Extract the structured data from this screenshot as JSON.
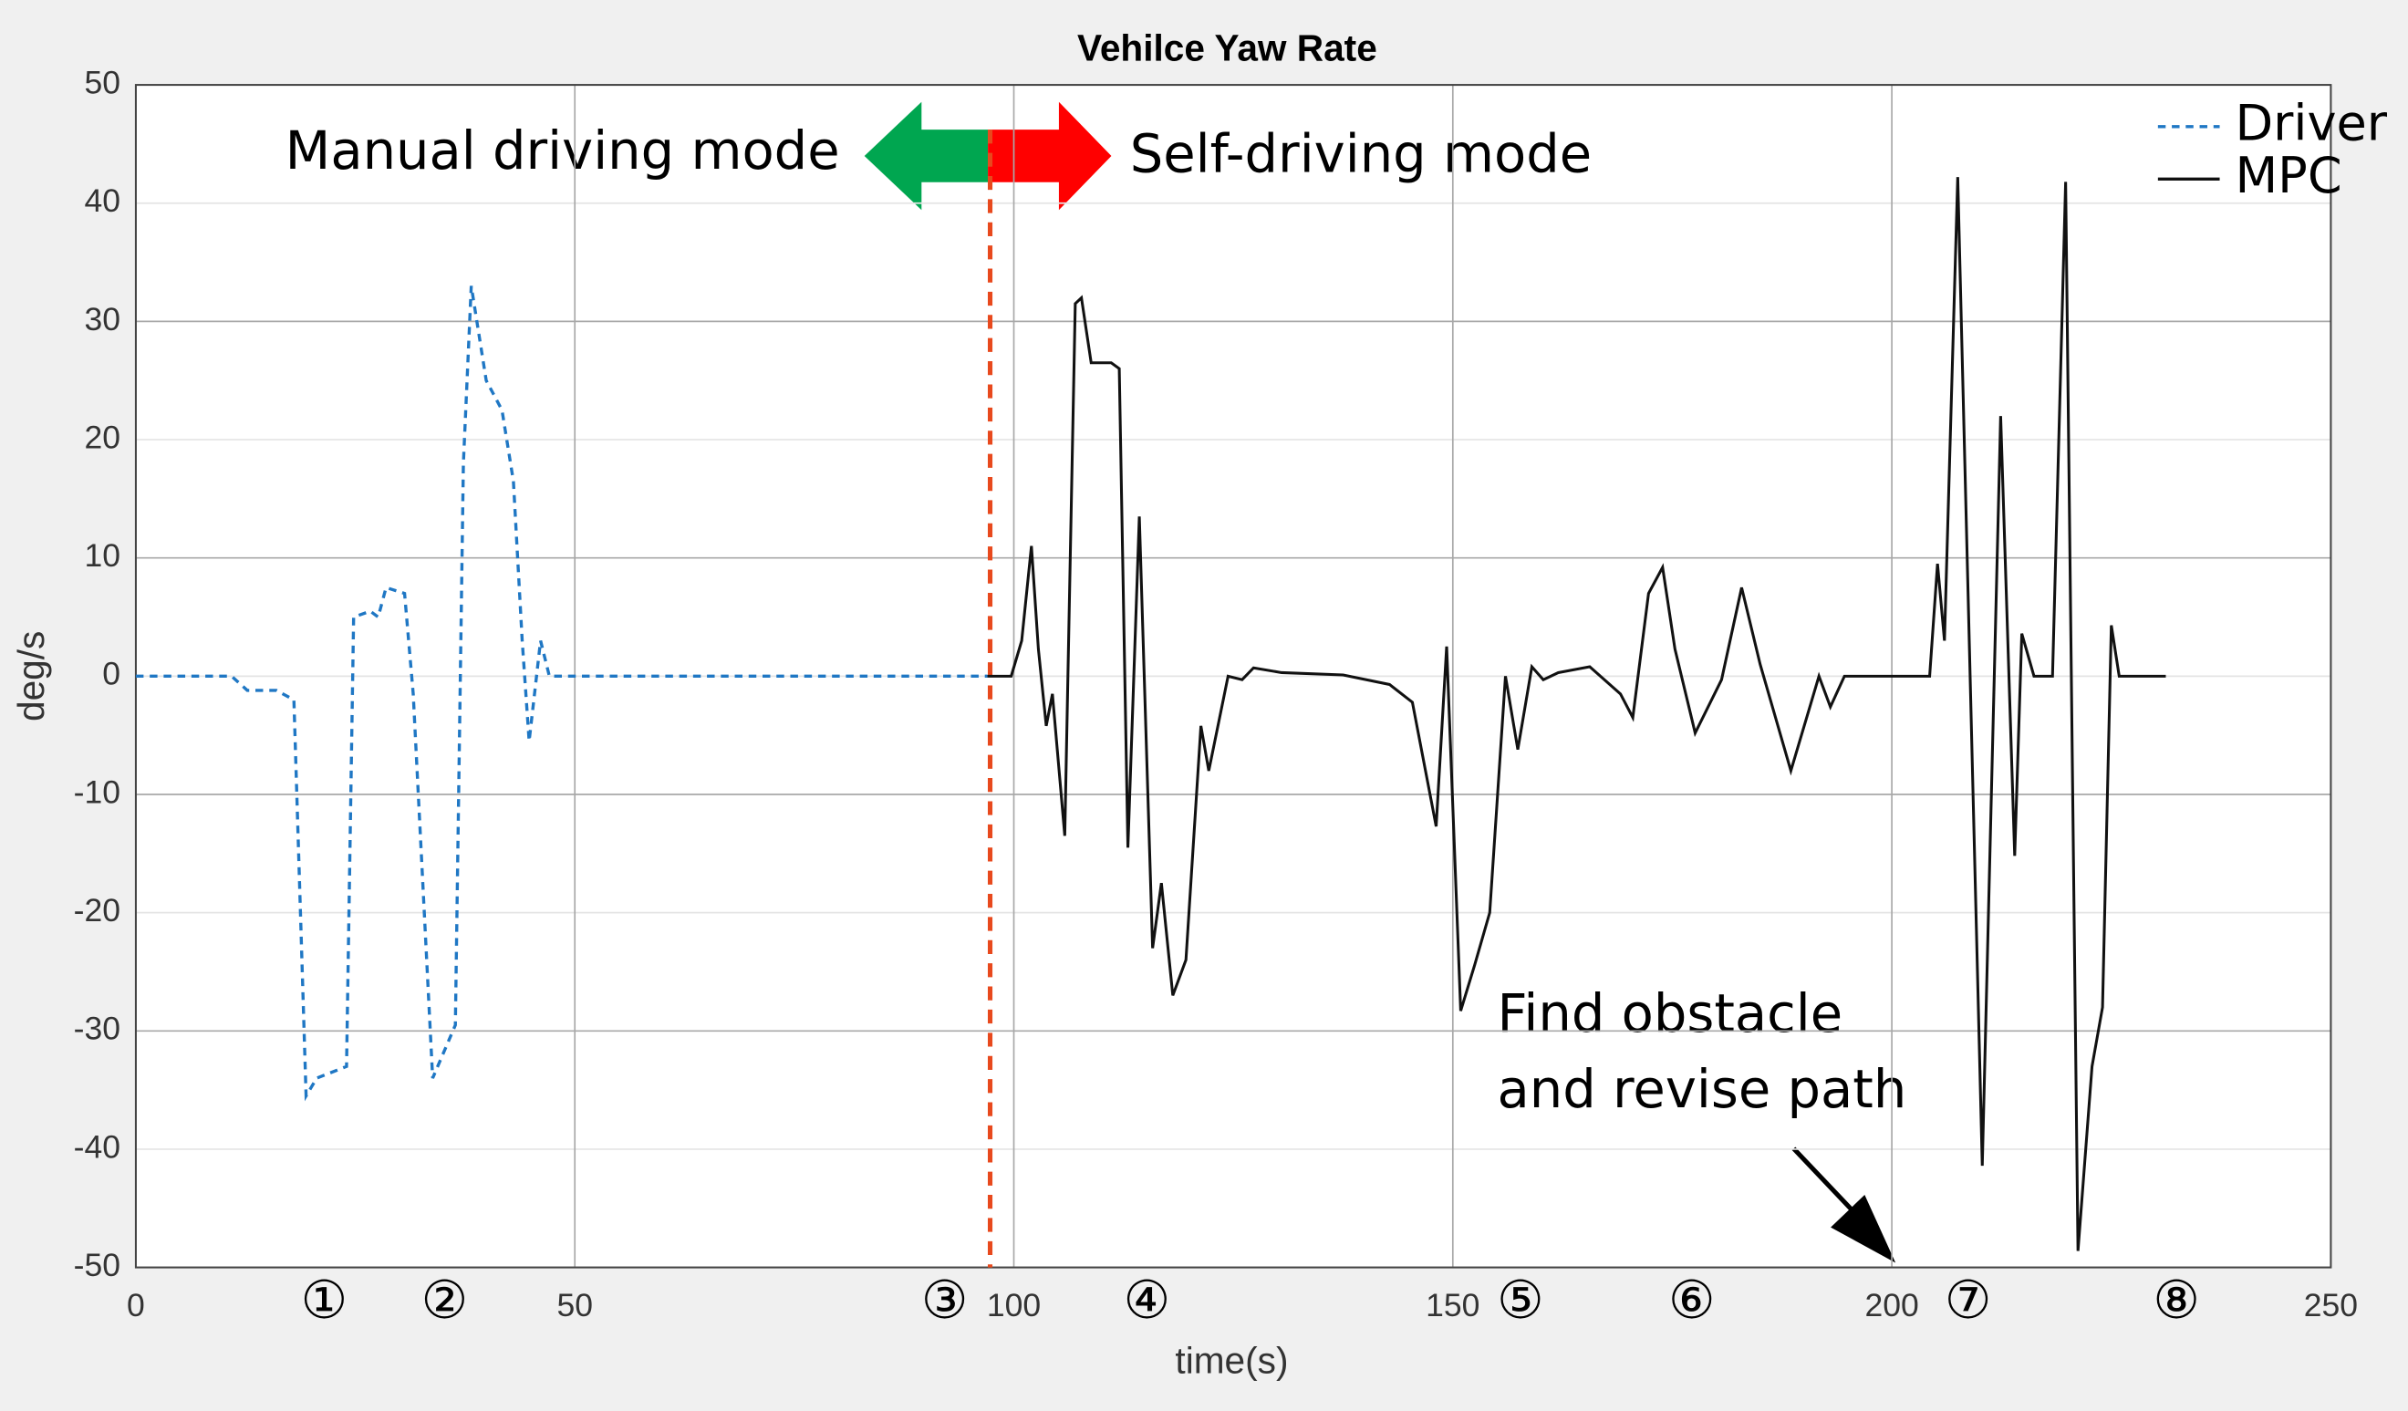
{
  "chart_data": {
    "type": "line",
    "title": "Vehilce Yaw Rate",
    "x_label": "time(s)",
    "y_label": "deg/s",
    "xlim": [
      0,
      250
    ],
    "xticks": [
      0,
      50,
      100,
      150,
      200,
      250
    ],
    "ylim": [
      -50,
      50
    ],
    "yticks": [
      -50,
      -40,
      -30,
      -20,
      -10,
      0,
      10,
      20,
      30,
      40,
      50
    ],
    "grid": true,
    "legend": "top-right",
    "series": [
      {
        "name": "Driver",
        "color": "#1f77c4",
        "dash": true,
        "x": [
          0,
          10.9,
          12.7,
          16,
          18,
          19.4,
          20.6,
          24,
          24.8,
          26.7,
          27.6,
          28.5,
          30.6,
          31.6,
          33.8,
          36.4,
          37.3,
          38.2,
          39.9,
          41.7,
          43,
          44,
          44.8,
          46.1,
          47.1,
          97
        ],
        "values": [
          0,
          0,
          -1.2,
          -1.2,
          -2,
          -35.5,
          -34,
          -33,
          5,
          5.5,
          5,
          7.5,
          7,
          -1.5,
          -34,
          -29.5,
          18,
          33,
          25,
          22.5,
          16.5,
          3,
          -5.5,
          3,
          0,
          0
        ]
      },
      {
        "name": "MPC",
        "color": "#111111",
        "dash": false,
        "x": [
          97,
          99.7,
          100.9,
          102,
          102.8,
          103.7,
          104.4,
          105.8,
          107,
          107.7,
          108.8,
          111.1,
          112,
          113,
          114.3,
          115.8,
          116.8,
          118.1,
          119.6,
          121.3,
          122.2,
          124.4,
          126,
          127.3,
          130.5,
          137.5,
          142.8,
          145.4,
          148.1,
          149.3,
          150.9,
          152.5,
          154.2,
          156,
          157.4,
          159,
          160.3,
          162,
          165.6,
          169.1,
          170.5,
          172.3,
          173.9,
          175.3,
          177.6,
          180.6,
          182.9,
          185,
          188.5,
          191.7,
          193,
          194.6,
          204.3,
          205.2,
          206,
          207.5,
          210.3,
          212.4,
          214,
          214.8,
          216.2,
          218.3,
          219.8,
          221.2,
          222.8,
          224,
          225,
          225.9,
          231.2
        ],
        "values": [
          0,
          0,
          3,
          11,
          2.3,
          -4.2,
          -1.5,
          -13.5,
          31.5,
          32,
          26.5,
          26.5,
          26,
          -14.5,
          13.5,
          -23,
          -17.5,
          -27,
          -24,
          -4.2,
          -8,
          0,
          -0.3,
          0.7,
          0.3,
          0.1,
          -0.7,
          -2.2,
          -12.7,
          2.5,
          -28.3,
          -24.4,
          -20,
          0,
          -6.2,
          0.8,
          -0.3,
          0.3,
          0.8,
          -1.5,
          -3.5,
          7,
          9.2,
          2.3,
          -4.8,
          -0.3,
          7.5,
          1,
          -8,
          0,
          -2.6,
          0,
          0,
          9.5,
          3,
          42.2,
          -41.4,
          22,
          -15.2,
          3.6,
          0,
          0,
          41.8,
          -48.6,
          -33,
          -28,
          4.3,
          0,
          0
        ]
      }
    ],
    "mode_switch_x": 97.3,
    "annotations": {
      "manual": "Manual driving mode",
      "self": "Self-driving mode",
      "obstacle": [
        "Find obstacle",
        "and revise path"
      ],
      "markers": [
        "①",
        "②",
        "③",
        "④",
        "⑤",
        "⑥",
        "⑦",
        "⑧"
      ]
    }
  }
}
